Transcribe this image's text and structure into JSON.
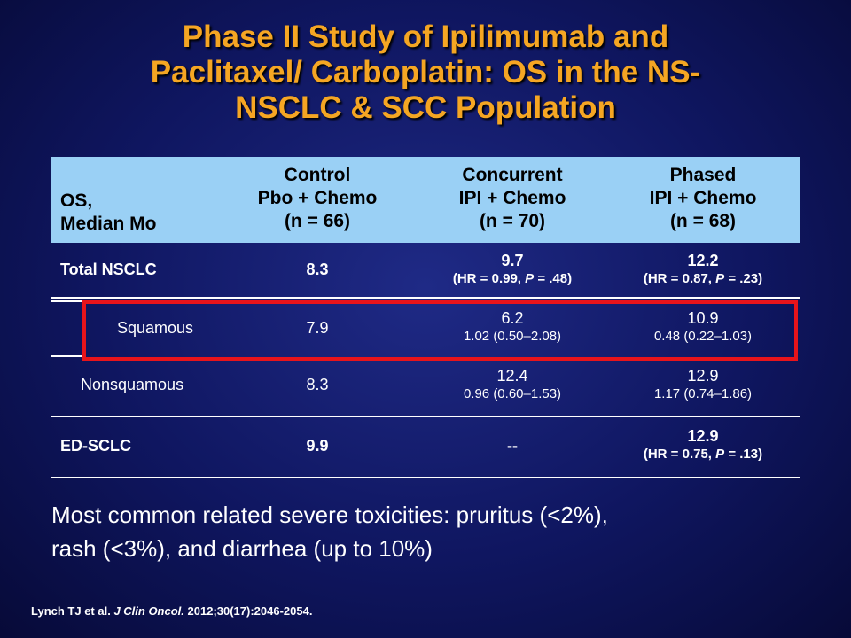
{
  "title": {
    "line1": "Phase II Study of Ipilimumab and",
    "line2": "Paclitaxel/ Carboplatin: OS in the NS-",
    "line3": "NSCLC & SCC Population"
  },
  "table": {
    "header": {
      "col0": {
        "line1": "OS,",
        "line2": "Median Mo"
      },
      "col1": {
        "line1": "Control",
        "line2": "Pbo + Chemo",
        "line3": "(n = 66)"
      },
      "col2": {
        "line1": "Concurrent",
        "line2": "IPI + Chemo",
        "line3": "(n = 70)"
      },
      "col3": {
        "line1": "Phased",
        "line2": "IPI + Chemo",
        "line3": "(n = 68)"
      }
    },
    "rows": [
      {
        "label": "Total NSCLC",
        "control": "8.3",
        "concurrent": "9.7",
        "concurrent_hr_pre": "(HR = 0.99, ",
        "concurrent_hr_p": "P",
        "concurrent_hr_post": " = .48)",
        "phased": "12.2",
        "phased_hr_pre": "(HR = 0.87, ",
        "phased_hr_p": "P",
        "phased_hr_post": " = .23)"
      },
      {
        "label": "Squamous",
        "control": "7.9",
        "concurrent": "6.2",
        "concurrent_hr": "1.02 (0.50–2.08)",
        "phased": "10.9",
        "phased_hr": "0.48 (0.22–1.03)"
      },
      {
        "label": "Nonsquamous",
        "control": "8.3",
        "concurrent": "12.4",
        "concurrent_hr": "0.96 (0.60–1.53)",
        "phased": "12.9",
        "phased_hr": "1.17 (0.74–1.86)"
      },
      {
        "label": "ED-SCLC",
        "control": "9.9",
        "concurrent": "--",
        "phased": "12.9",
        "phased_hr_pre": "(HR = 0.75, ",
        "phased_hr_p": "P",
        "phased_hr_post": " = .13)"
      }
    ]
  },
  "note": {
    "line1": "Most common related severe toxicities: pruritus (<2%),",
    "line2": "rash (<3%), and diarrhea (up to 10%)"
  },
  "citation": {
    "authors": "Lynch TJ et al. ",
    "journal": "J Clin Oncol.",
    "details": " 2012;30(17):2046-2054."
  },
  "colors": {
    "title": "#f5a623",
    "header_bg": "#9ad0f5",
    "highlight": "#e8141b",
    "background": "#0f1660"
  }
}
